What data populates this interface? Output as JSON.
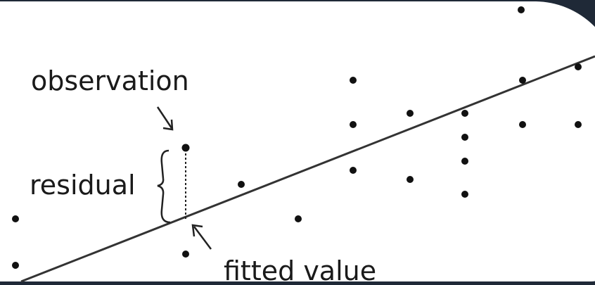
{
  "labels": {
    "observation": "observation",
    "residual": "residual",
    "fitted_value": "fitted value"
  },
  "colors": {
    "ink": "#111111",
    "line": "#333333",
    "background": "#ffffff",
    "frame": "#1f2937"
  }
}
